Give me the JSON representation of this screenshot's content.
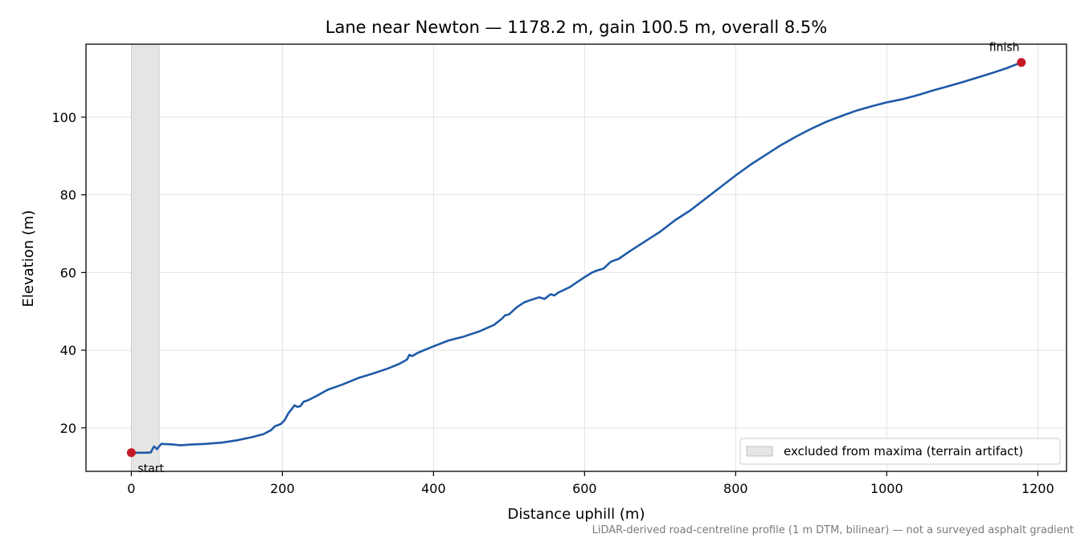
{
  "chart_data": {
    "type": "line",
    "title": "Lane near Newton — 1178.2 m, gain 100.5 m, overall 8.5%",
    "xlabel": "Distance uphill (m)",
    "ylabel": "Elevation (m)",
    "xlim": [
      -60,
      1238
    ],
    "ylim": [
      8.8,
      118.8
    ],
    "xticks": [
      0,
      200,
      400,
      600,
      800,
      1000,
      1200
    ],
    "yticks": [
      20,
      40,
      60,
      80,
      100
    ],
    "grid": true,
    "legend_position": "lower-right",
    "excluded_region": {
      "x0": 0,
      "x1": 37,
      "label": "excluded from maxima (terrain artifact)",
      "color": "#e5e5e3"
    },
    "line_color": "#1f5aa8",
    "marker_color": "#c41a28",
    "points": [
      [
        0,
        13.6
      ],
      [
        5,
        13.6
      ],
      [
        10,
        13.6
      ],
      [
        15,
        13.6
      ],
      [
        20,
        13.6
      ],
      [
        26,
        13.7
      ],
      [
        28,
        14.5
      ],
      [
        30,
        15.2
      ],
      [
        32,
        14.9
      ],
      [
        34,
        14.5
      ],
      [
        37,
        15.3
      ],
      [
        40,
        15.9
      ],
      [
        45,
        15.8
      ],
      [
        55,
        15.7
      ],
      [
        65,
        15.5
      ],
      [
        80,
        15.7
      ],
      [
        100,
        15.9
      ],
      [
        120,
        16.2
      ],
      [
        140,
        16.8
      ],
      [
        160,
        17.6
      ],
      [
        175,
        18.4
      ],
      [
        185,
        19.4
      ],
      [
        190,
        20.4
      ],
      [
        198,
        21.0
      ],
      [
        203,
        22.0
      ],
      [
        208,
        23.8
      ],
      [
        213,
        25.0
      ],
      [
        216,
        25.8
      ],
      [
        220,
        25.4
      ],
      [
        224,
        25.6
      ],
      [
        228,
        26.7
      ],
      [
        235,
        27.2
      ],
      [
        245,
        28.2
      ],
      [
        260,
        29.8
      ],
      [
        280,
        31.2
      ],
      [
        300,
        32.8
      ],
      [
        320,
        34.0
      ],
      [
        340,
        35.3
      ],
      [
        355,
        36.5
      ],
      [
        365,
        37.6
      ],
      [
        368,
        38.8
      ],
      [
        372,
        38.5
      ],
      [
        380,
        39.4
      ],
      [
        400,
        41.0
      ],
      [
        420,
        42.5
      ],
      [
        430,
        43.0
      ],
      [
        440,
        43.5
      ],
      [
        460,
        44.8
      ],
      [
        480,
        46.5
      ],
      [
        490,
        48.0
      ],
      [
        495,
        49.0
      ],
      [
        500,
        49.2
      ],
      [
        510,
        51.0
      ],
      [
        520,
        52.3
      ],
      [
        530,
        53.0
      ],
      [
        540,
        53.6
      ],
      [
        547,
        53.2
      ],
      [
        555,
        54.4
      ],
      [
        560,
        54.1
      ],
      [
        565,
        54.8
      ],
      [
        580,
        56.2
      ],
      [
        600,
        58.8
      ],
      [
        610,
        60.0
      ],
      [
        615,
        60.4
      ],
      [
        625,
        61.0
      ],
      [
        635,
        62.8
      ],
      [
        645,
        63.5
      ],
      [
        660,
        65.5
      ],
      [
        680,
        68.0
      ],
      [
        700,
        70.5
      ],
      [
        720,
        73.5
      ],
      [
        740,
        76.0
      ],
      [
        760,
        79.0
      ],
      [
        780,
        82.0
      ],
      [
        800,
        85.0
      ],
      [
        820,
        87.8
      ],
      [
        840,
        90.3
      ],
      [
        860,
        92.8
      ],
      [
        880,
        95.0
      ],
      [
        900,
        97.0
      ],
      [
        920,
        98.8
      ],
      [
        940,
        100.3
      ],
      [
        960,
        101.7
      ],
      [
        980,
        102.8
      ],
      [
        1000,
        103.8
      ],
      [
        1020,
        104.6
      ],
      [
        1040,
        105.6
      ],
      [
        1060,
        106.8
      ],
      [
        1080,
        107.9
      ],
      [
        1100,
        109.0
      ],
      [
        1120,
        110.2
      ],
      [
        1140,
        111.4
      ],
      [
        1160,
        112.7
      ],
      [
        1178.2,
        114.1
      ]
    ],
    "markers": [
      {
        "label": "start",
        "x": 0,
        "y": 13.6
      },
      {
        "label": "finish",
        "x": 1178.2,
        "y": 114.1
      }
    ],
    "footnote": "LiDAR-derived road-centreline profile (1 m DTM, bilinear) — not a surveyed asphalt gradient"
  }
}
